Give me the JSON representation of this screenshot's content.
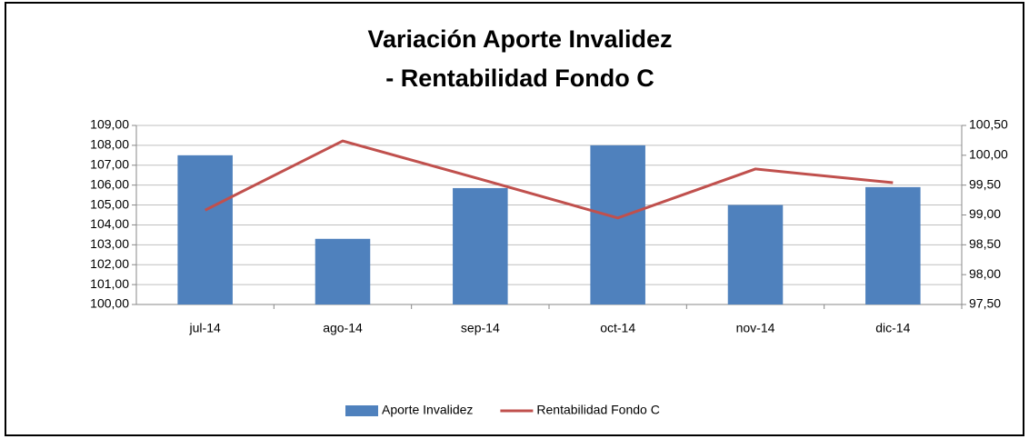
{
  "chart_data": {
    "type": "combo",
    "title": [
      "Variación Aporte Invalidez",
      "- Rentabilidad Fondo C"
    ],
    "categories": [
      "jul-14",
      "ago-14",
      "sep-14",
      "oct-14",
      "nov-14",
      "dic-14"
    ],
    "series": [
      {
        "name": "Aporte Invalidez",
        "type": "bar",
        "color": "#4f81bd",
        "values": [
          107.5,
          103.3,
          105.85,
          108.0,
          105.0,
          105.9
        ]
      },
      {
        "name": "Rentabilidad Fondo C",
        "type": "line",
        "axis": "y2",
        "color": "#c0504d",
        "values": [
          99.08,
          100.24,
          99.6,
          98.95,
          99.77,
          99.54
        ]
      }
    ],
    "ylim": [
      100,
      109
    ],
    "yticks": [
      {
        "value": 100,
        "label": "100,00"
      },
      {
        "value": 101,
        "label": "101,00"
      },
      {
        "value": 102,
        "label": "102,00"
      },
      {
        "value": 103,
        "label": "103,00"
      },
      {
        "value": 104,
        "label": "104,00"
      },
      {
        "value": 105,
        "label": "105,00"
      },
      {
        "value": 106,
        "label": "106,00"
      },
      {
        "value": 107,
        "label": "107,00"
      },
      {
        "value": 108,
        "label": "108,00"
      },
      {
        "value": 109,
        "label": "109,00"
      }
    ],
    "y2lim": [
      97.5,
      100.5
    ],
    "y2ticks": [
      {
        "value": 97.5,
        "label": "97,50"
      },
      {
        "value": 98,
        "label": "98,00"
      },
      {
        "value": 98.5,
        "label": "98,50"
      },
      {
        "value": 99,
        "label": "99,00"
      },
      {
        "value": 99.5,
        "label": "99,50"
      },
      {
        "value": 100,
        "label": "100,00"
      },
      {
        "value": 100.5,
        "label": "100,50"
      }
    ],
    "grid": true,
    "legend": "bottom"
  }
}
